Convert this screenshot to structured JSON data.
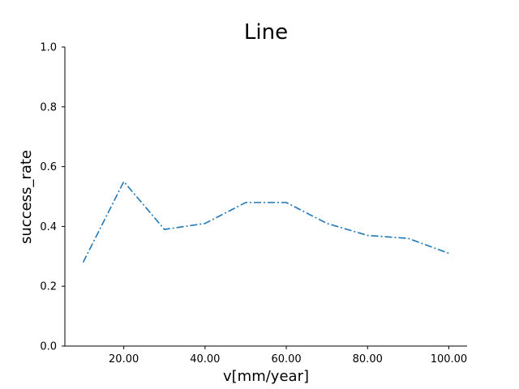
{
  "chart_data": {
    "type": "line",
    "title": "Line",
    "xlabel": "v[mm/year]",
    "ylabel": "success_rate",
    "x": [
      10,
      20,
      30,
      40,
      50,
      60,
      70,
      80,
      90,
      100
    ],
    "series": [
      {
        "values": [
          0.28,
          0.55,
          0.39,
          0.41,
          0.48,
          0.48,
          0.41,
          0.37,
          0.36,
          0.31
        ],
        "color": "#1f77b4",
        "line_style": "dash-dot"
      }
    ],
    "xlim": [
      5.5,
      104.5
    ],
    "ylim": [
      0.0,
      1.0
    ],
    "xticks": [
      20,
      40,
      60,
      80,
      100
    ],
    "xtick_labels": [
      "20.00",
      "40.00",
      "60.00",
      "80.00",
      "100.00"
    ],
    "yticks": [
      0.0,
      0.2,
      0.4,
      0.6,
      0.8,
      1.0
    ],
    "ytick_labels": [
      "0.0",
      "0.2",
      "0.4",
      "0.6",
      "0.8",
      "1.0"
    ],
    "grid": false,
    "legend": "none"
  }
}
